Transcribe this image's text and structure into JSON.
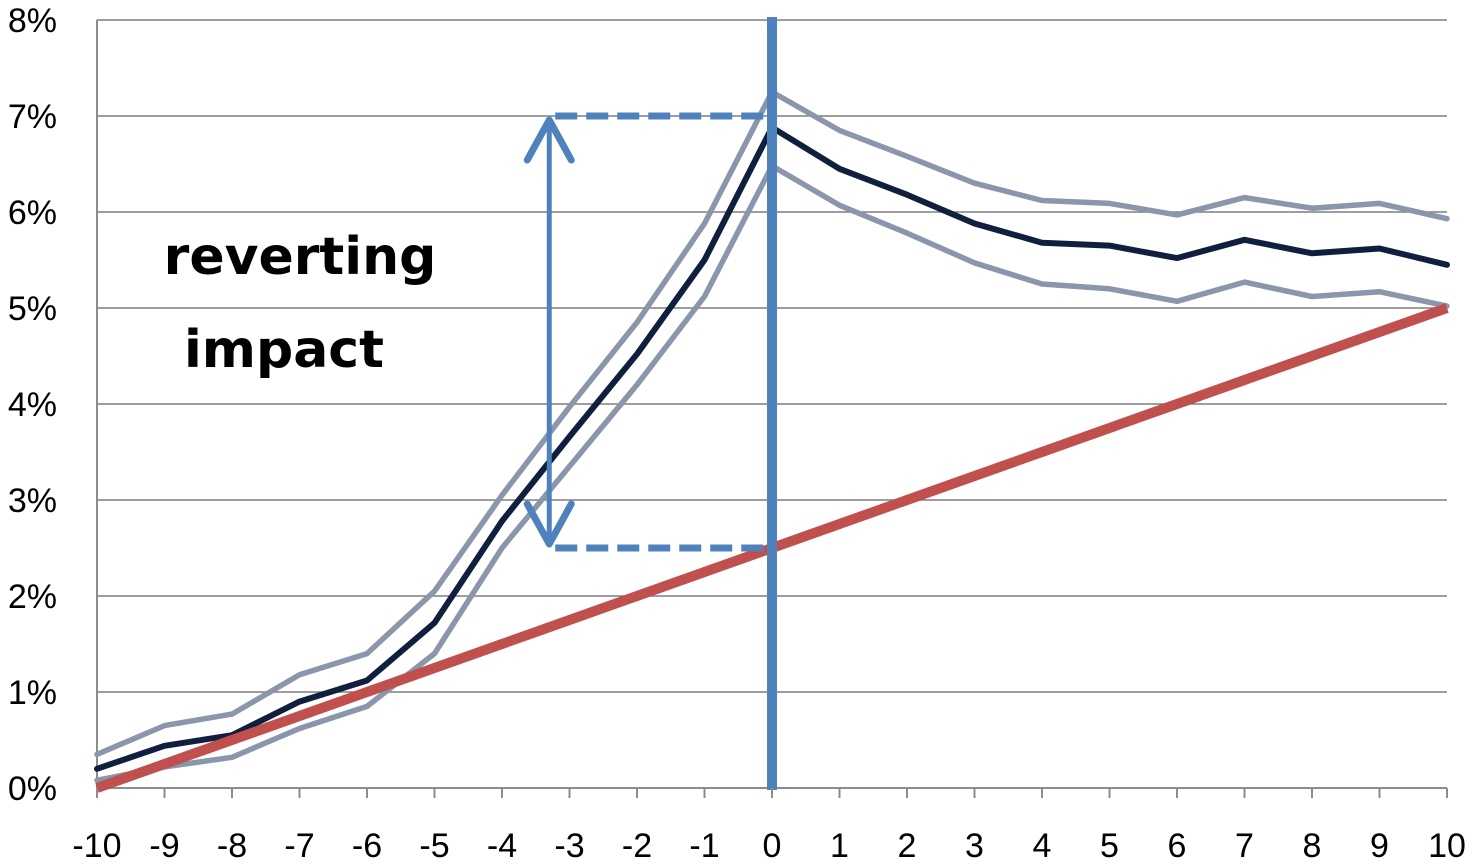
{
  "chart_data": {
    "type": "line",
    "title": "",
    "xlabel": "",
    "ylabel": "",
    "x": [
      -10,
      -9,
      -8,
      -7,
      -6,
      -5,
      -4,
      -3,
      -2,
      -1,
      0,
      1,
      2,
      3,
      4,
      5,
      6,
      7,
      8,
      9,
      10
    ],
    "x_ticks": [
      "-10",
      "-9",
      "-8",
      "-7",
      "-6",
      "-5",
      "-4",
      "-3",
      "-2",
      "-1",
      "0",
      "1",
      "2",
      "3",
      "4",
      "5",
      "6",
      "7",
      "8",
      "9",
      "10"
    ],
    "y_ticks": [
      "0%",
      "1%",
      "2%",
      "3%",
      "4%",
      "5%",
      "6%",
      "7%",
      "8%"
    ],
    "xlim": [
      -10,
      10
    ],
    "ylim": [
      0,
      8
    ],
    "grid": "horizontal",
    "series": [
      {
        "role": "upper-band",
        "color": "#8a96ab",
        "values": [
          0.35,
          0.65,
          0.77,
          1.18,
          1.4,
          2.05,
          3.05,
          3.97,
          4.85,
          5.88,
          7.25,
          6.85,
          6.58,
          6.3,
          6.12,
          6.09,
          5.97,
          6.15,
          6.04,
          6.09,
          5.93
        ]
      },
      {
        "role": "lower-band",
        "color": "#8a96ab",
        "values": [
          0.08,
          0.22,
          0.32,
          0.62,
          0.85,
          1.4,
          2.5,
          3.35,
          4.2,
          5.12,
          6.48,
          6.07,
          5.78,
          5.47,
          5.25,
          5.2,
          5.07,
          5.27,
          5.12,
          5.17,
          5.02
        ]
      },
      {
        "role": "mean",
        "color": "#0f1f3d",
        "values": [
          0.2,
          0.44,
          0.55,
          0.9,
          1.12,
          1.72,
          2.78,
          3.66,
          4.52,
          5.5,
          6.88,
          6.45,
          6.18,
          5.88,
          5.68,
          5.65,
          5.52,
          5.71,
          5.57,
          5.62,
          5.45
        ]
      },
      {
        "role": "trend",
        "color": "#c0504d",
        "values": [
          0.0,
          0.25,
          0.5,
          0.75,
          1.0,
          1.25,
          1.5,
          1.75,
          2.0,
          2.25,
          2.5,
          2.75,
          3.0,
          3.25,
          3.5,
          3.75,
          4.0,
          4.25,
          4.5,
          4.75,
          5.0
        ]
      }
    ],
    "event_line": {
      "x": 0,
      "color": "#4f81bd"
    },
    "annotation": {
      "lines": [
        "reverting",
        "impact"
      ],
      "arrow_x": -3.3,
      "arrow_from": 2.5,
      "arrow_to": 7.0,
      "color": "#4f81bd"
    }
  }
}
